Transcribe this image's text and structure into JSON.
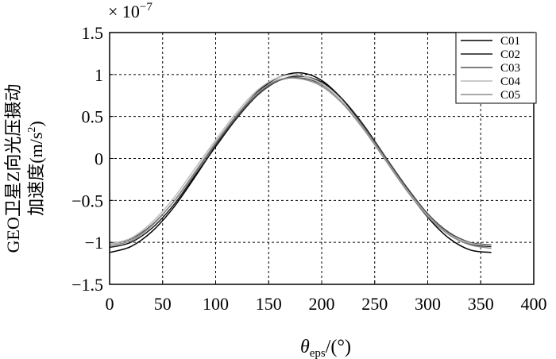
{
  "chart_data": {
    "type": "line",
    "title": "",
    "xlabel": "θ",
    "xlabel_sub": "eps",
    "xlabel_unit": "/(°)",
    "ylabel_line1": "GEO卫星Z向光压摄动",
    "ylabel_line2": "加速度(m/s",
    "ylabel_sup": "2",
    "ylabel_close": ")",
    "multiplier": "× 10",
    "multiplier_exp": "−7",
    "xlim": [
      0,
      400
    ],
    "ylim": [
      -1.5,
      1.5
    ],
    "xticks": [
      0,
      50,
      100,
      150,
      200,
      250,
      300,
      350,
      400
    ],
    "yticks": [
      -1.5,
      -1,
      -0.5,
      0,
      0.5,
      1,
      1.5
    ],
    "xtick_labels": [
      "0",
      "50",
      "100",
      "150",
      "200",
      "250",
      "300",
      "350",
      "400"
    ],
    "ytick_labels": [
      "−1.5",
      "−1",
      "−0.5",
      "0",
      "0.5",
      "1",
      "1.5"
    ],
    "grid": true,
    "legend_position": "top-right",
    "series": [
      {
        "name": "C01",
        "color": "#000000",
        "x": [
          0,
          20,
          40,
          60,
          80,
          100,
          120,
          140,
          160,
          180,
          200,
          220,
          240,
          260,
          280,
          300,
          320,
          340,
          360
        ],
        "y": [
          -1.12,
          -1.05,
          -0.87,
          -0.59,
          -0.23,
          0.15,
          0.51,
          0.8,
          0.97,
          1.02,
          0.93,
          0.7,
          0.38,
          0.01,
          -0.37,
          -0.7,
          -0.95,
          -1.09,
          -1.12
        ]
      },
      {
        "name": "C02",
        "color": "#1a1a1a",
        "x": [
          0,
          20,
          40,
          60,
          80,
          100,
          120,
          140,
          160,
          180,
          200,
          220,
          240,
          260,
          280,
          300,
          320,
          340,
          360
        ],
        "y": [
          -1.06,
          -1.0,
          -0.83,
          -0.56,
          -0.21,
          0.14,
          0.48,
          0.76,
          0.93,
          0.98,
          0.91,
          0.7,
          0.39,
          0.02,
          -0.34,
          -0.66,
          -0.89,
          -1.02,
          -1.05
        ]
      },
      {
        "name": "C03",
        "color": "#555555",
        "x": [
          0,
          20,
          40,
          60,
          80,
          100,
          120,
          140,
          160,
          180,
          200,
          220,
          240,
          260,
          280,
          300,
          320,
          340,
          360
        ],
        "y": [
          -1.02,
          -0.96,
          -0.79,
          -0.52,
          -0.18,
          0.17,
          0.5,
          0.77,
          0.93,
          0.96,
          0.88,
          0.67,
          0.37,
          0.01,
          -0.35,
          -0.66,
          -0.88,
          -1.0,
          -1.03
        ]
      },
      {
        "name": "C04",
        "color": "#bbbbbb",
        "x": [
          0,
          20,
          40,
          60,
          80,
          100,
          120,
          140,
          160,
          180,
          200,
          220,
          240,
          260,
          280,
          300,
          320,
          340,
          360
        ],
        "y": [
          -1.02,
          -0.95,
          -0.76,
          -0.48,
          -0.13,
          0.22,
          0.55,
          0.82,
          0.97,
          0.99,
          0.89,
          0.67,
          0.35,
          -0.01,
          -0.37,
          -0.68,
          -0.9,
          -1.01,
          -1.04
        ]
      },
      {
        "name": "C05",
        "color": "#8c8c8c",
        "x": [
          0,
          20,
          40,
          60,
          80,
          100,
          120,
          140,
          160,
          180,
          200,
          220,
          240,
          260,
          280,
          300,
          320,
          340,
          360
        ],
        "y": [
          -1.04,
          -0.98,
          -0.8,
          -0.52,
          -0.17,
          0.19,
          0.52,
          0.79,
          0.94,
          0.95,
          0.86,
          0.65,
          0.34,
          -0.02,
          -0.38,
          -0.69,
          -0.91,
          -1.03,
          -1.07
        ]
      }
    ]
  }
}
